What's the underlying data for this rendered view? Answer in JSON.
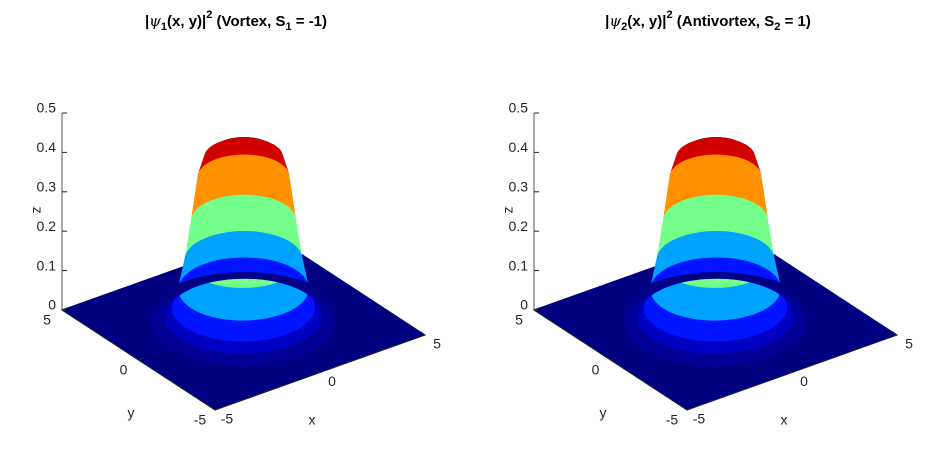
{
  "chart_data": [
    {
      "type": "surface",
      "title": {
        "pre": "|",
        "psi": "ψ",
        "psi_sub": "1",
        "args": "(x, y)|",
        "sup": "2",
        "mid": " (Vortex, S",
        "s_sub": "1",
        "end": " = -1)"
      },
      "xlabel": "x",
      "ylabel": "y",
      "zlabel": "z",
      "xlim": [
        -5,
        5
      ],
      "ylim": [
        -5,
        5
      ],
      "zlim": [
        0,
        0.5
      ],
      "xticks": [
        -5,
        0,
        5
      ],
      "yticks": [
        -5,
        0,
        5
      ],
      "zticks": [
        0,
        0.1,
        0.2,
        0.3,
        0.4,
        0.5
      ],
      "colormap": "jet",
      "profile": {
        "r": [
          0,
          0.25,
          0.5,
          0.75,
          1,
          1.25,
          1.5,
          1.75,
          2,
          2.25,
          2.5,
          2.75,
          3,
          3.5,
          4
        ],
        "z": [
          0.3,
          0.34,
          0.38,
          0.41,
          0.425,
          0.43,
          0.42,
          0.37,
          0.26,
          0.16,
          0.085,
          0.04,
          0.017,
          0.003,
          0
        ]
      }
    },
    {
      "type": "surface",
      "title": {
        "pre": "|",
        "psi": "ψ",
        "psi_sub": "2",
        "args": "(x, y)|",
        "sup": "2",
        "mid": " (Antivortex, S",
        "s_sub": "2",
        "end": " = 1)"
      },
      "xlabel": "x",
      "ylabel": "y",
      "zlabel": "z",
      "xlim": [
        -5,
        5
      ],
      "ylim": [
        -5,
        5
      ],
      "zlim": [
        0,
        0.5
      ],
      "xticks": [
        -5,
        0,
        5
      ],
      "yticks": [
        -5,
        0,
        5
      ],
      "zticks": [
        0,
        0.1,
        0.2,
        0.3,
        0.4,
        0.5
      ],
      "colormap": "jet",
      "profile": {
        "r": [
          0,
          0.25,
          0.5,
          0.75,
          1,
          1.25,
          1.5,
          1.75,
          2,
          2.25,
          2.5,
          2.75,
          3,
          3.5,
          4
        ],
        "z": [
          0.3,
          0.34,
          0.38,
          0.41,
          0.425,
          0.43,
          0.42,
          0.37,
          0.26,
          0.16,
          0.085,
          0.04,
          0.017,
          0.003,
          0
        ]
      }
    }
  ]
}
